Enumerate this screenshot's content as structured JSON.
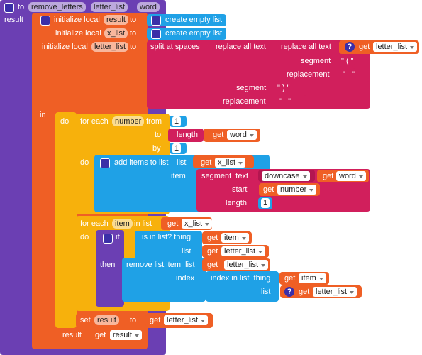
{
  "procedure": {
    "keyword": "to",
    "name": "remove_letters",
    "params": [
      "letter_list",
      "word"
    ],
    "result": "result"
  },
  "locals": [
    {
      "label": "initialize local",
      "name": "result",
      "to": "to",
      "value": "create empty list"
    },
    {
      "label": "initialize local",
      "name": "x_list",
      "to": "to",
      "value": "create empty list"
    },
    {
      "label": "initialize local",
      "name": "letter_list",
      "to": "to"
    }
  ],
  "split": {
    "label": "split at spaces",
    "outer": {
      "label": "replace all text",
      "segment_label": "segment",
      "segment": "\" ) \"",
      "replacement_label": "replacement",
      "replacement": "\"   \""
    },
    "inner": {
      "label": "replace all text",
      "get": "get",
      "var": "letter_list",
      "segment_label": "segment",
      "segment": "\" ( \"",
      "replacement_label": "replacement",
      "replacement": "\"   \""
    }
  },
  "in_label": "in",
  "do_label": "do",
  "help": "?",
  "loop1": {
    "for_each": "for each",
    "var": "number",
    "from": "from",
    "from_value": 1,
    "to": "to",
    "length": "length",
    "get": "get",
    "to_var": "word",
    "by": "by",
    "by_value": 1,
    "do": "do",
    "add": {
      "label": "add items to list",
      "list_label": "list",
      "list_get": "get",
      "list_var": "x_list",
      "item_label": "item",
      "segment": "segment  text",
      "downcase": "downcase",
      "text_get": "get",
      "text_var": "word",
      "start_label": "start",
      "start_get": "get",
      "start_var": "number",
      "length_label": "length",
      "length_value": 1
    }
  },
  "loop2": {
    "for_each": "for each",
    "var": "item",
    "in_list": "in list",
    "get": "get",
    "list_var": "x_list",
    "do": "do",
    "if": {
      "if": "if",
      "is_in_list": "is in list? thing",
      "thing_get": "get",
      "thing_var": "item",
      "list_label": "list",
      "list_get": "get",
      "list_var": "letter_list",
      "then": "then",
      "remove": "remove list item  list",
      "remove_get": "get",
      "remove_var": "letter_list",
      "index_label": "index",
      "index_in_list": "index in list  thing",
      "index_get": "get",
      "index_var": "item",
      "index_list_label": "list",
      "index_list_get": "get",
      "index_list_var": "letter_list"
    }
  },
  "set": {
    "set": "set",
    "var": "result",
    "to": "to",
    "get": "get",
    "value_var": "letter_list"
  },
  "return": {
    "label": "result",
    "get": "get",
    "var": "result"
  }
}
